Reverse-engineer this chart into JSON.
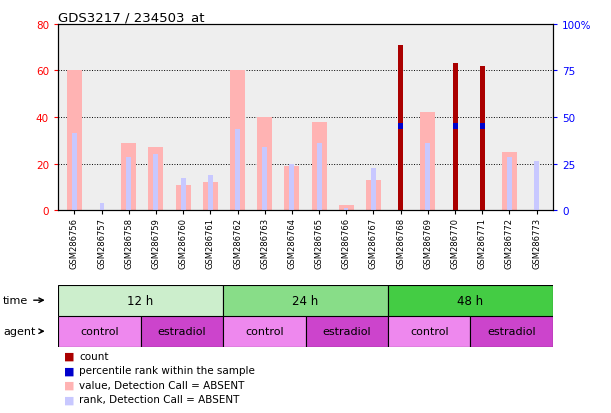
{
  "title": "GDS3217 / 234503_at",
  "samples": [
    "GSM286756",
    "GSM286757",
    "GSM286758",
    "GSM286759",
    "GSM286760",
    "GSM286761",
    "GSM286762",
    "GSM286763",
    "GSM286764",
    "GSM286765",
    "GSM286766",
    "GSM286767",
    "GSM286768",
    "GSM286769",
    "GSM286770",
    "GSM286771",
    "GSM286772",
    "GSM286773"
  ],
  "value_absent": [
    60,
    0,
    29,
    27,
    11,
    12,
    60,
    40,
    19,
    38,
    2,
    13,
    0,
    42,
    0,
    0,
    25,
    0
  ],
  "rank_absent": [
    33,
    0,
    23,
    24,
    14,
    15,
    35,
    27,
    20,
    29,
    0,
    18,
    0,
    29,
    0,
    0,
    23,
    21
  ],
  "count_present": [
    0,
    0,
    0,
    0,
    0,
    0,
    0,
    0,
    0,
    0,
    0,
    0,
    71,
    0,
    63,
    62,
    0,
    0
  ],
  "rank_present": [
    0,
    0,
    0,
    0,
    0,
    0,
    0,
    0,
    0,
    0,
    0,
    0,
    36,
    0,
    36,
    36,
    0,
    0
  ],
  "small_rank_absent": [
    0,
    3,
    0,
    0,
    0,
    0,
    0,
    0,
    0,
    0,
    1,
    0,
    0,
    0,
    0,
    0,
    0,
    0
  ],
  "ylim_left": [
    0,
    80
  ],
  "ylim_right": [
    0,
    100
  ],
  "yticks_left": [
    0,
    20,
    40,
    60,
    80
  ],
  "yticks_right": [
    0,
    25,
    50,
    75,
    100
  ],
  "color_value_absent": "#ffb3b3",
  "color_rank_absent": "#c8c8ff",
  "color_count_present": "#aa0000",
  "color_rank_present": "#0000cc",
  "time_groups": [
    {
      "label": "12 h",
      "start": 0,
      "end": 6,
      "color": "#cceecc"
    },
    {
      "label": "24 h",
      "start": 6,
      "end": 12,
      "color": "#88dd88"
    },
    {
      "label": "48 h",
      "start": 12,
      "end": 18,
      "color": "#44cc44"
    }
  ],
  "agent_groups": [
    {
      "label": "control",
      "start": 0,
      "end": 3,
      "color": "#ee88ee"
    },
    {
      "label": "estradiol",
      "start": 3,
      "end": 6,
      "color": "#cc44cc"
    },
    {
      "label": "control",
      "start": 6,
      "end": 9,
      "color": "#ee88ee"
    },
    {
      "label": "estradiol",
      "start": 9,
      "end": 12,
      "color": "#cc44cc"
    },
    {
      "label": "control",
      "start": 12,
      "end": 15,
      "color": "#ee88ee"
    },
    {
      "label": "estradiol",
      "start": 15,
      "end": 18,
      "color": "#cc44cc"
    }
  ],
  "bg_chart": "#eeeeee",
  "bg_fig": "#ffffff"
}
